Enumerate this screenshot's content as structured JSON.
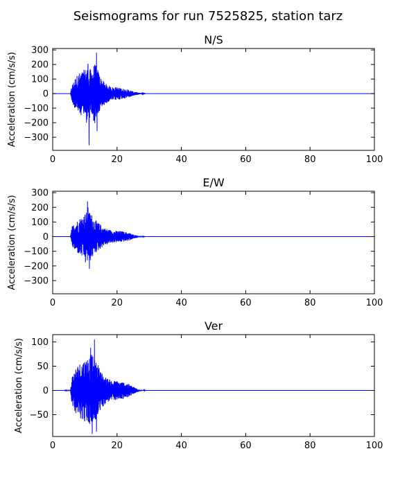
{
  "figure": {
    "title": "Seismograms for run 7525825, station tarz"
  },
  "chart_data": [
    {
      "type": "line",
      "title": "N/S",
      "xlabel": "",
      "ylabel": "Acceleration (cm/s/s)",
      "xlim": [
        0,
        100
      ],
      "ylim": [
        -390,
        310
      ],
      "xticks": [
        0,
        20,
        40,
        60,
        80,
        100
      ],
      "yticks": [
        -300,
        -200,
        -100,
        0,
        100,
        200,
        300
      ],
      "line_color": "#0000ff",
      "envelope": [
        [
          0,
          0
        ],
        [
          5.5,
          0
        ],
        [
          6,
          60
        ],
        [
          7,
          110
        ],
        [
          8,
          140
        ],
        [
          9,
          150
        ],
        [
          10,
          170
        ],
        [
          11,
          190
        ],
        [
          12,
          160
        ],
        [
          13,
          210
        ],
        [
          14,
          170
        ],
        [
          15,
          110
        ],
        [
          16,
          80
        ],
        [
          17,
          60
        ],
        [
          18,
          50
        ],
        [
          19,
          45
        ],
        [
          20,
          45
        ],
        [
          21,
          40
        ],
        [
          22,
          35
        ],
        [
          23,
          30
        ],
        [
          24,
          25
        ],
        [
          25,
          15
        ],
        [
          26,
          10
        ],
        [
          27,
          5
        ],
        [
          28,
          2
        ],
        [
          29,
          0
        ],
        [
          100,
          0
        ]
      ],
      "peaks": [
        {
          "x": 13.6,
          "y": 282
        },
        {
          "x": 11.3,
          "y": -355
        },
        {
          "x": 13.8,
          "y": -258
        },
        {
          "x": 10.5,
          "y": -200
        },
        {
          "x": 11.0,
          "y": 205
        }
      ]
    },
    {
      "type": "line",
      "title": "E/W",
      "xlabel": "",
      "ylabel": "Acceleration (cm/s/s)",
      "xlim": [
        0,
        100
      ],
      "ylim": [
        -390,
        310
      ],
      "xticks": [
        0,
        20,
        40,
        60,
        80,
        100
      ],
      "yticks": [
        -300,
        -200,
        -100,
        0,
        100,
        200,
        300
      ],
      "line_color": "#0000ff",
      "envelope": [
        [
          0,
          0
        ],
        [
          5.5,
          0
        ],
        [
          6,
          70
        ],
        [
          7,
          100
        ],
        [
          8,
          120
        ],
        [
          9,
          140
        ],
        [
          10,
          160
        ],
        [
          11,
          180
        ],
        [
          12,
          160
        ],
        [
          13,
          120
        ],
        [
          14,
          100
        ],
        [
          15,
          80
        ],
        [
          16,
          60
        ],
        [
          17,
          55
        ],
        [
          18,
          45
        ],
        [
          19,
          40
        ],
        [
          20,
          40
        ],
        [
          21,
          38
        ],
        [
          22,
          35
        ],
        [
          23,
          30
        ],
        [
          24,
          25
        ],
        [
          25,
          15
        ],
        [
          26,
          10
        ],
        [
          27,
          5
        ],
        [
          28,
          2
        ],
        [
          29,
          0
        ],
        [
          100,
          0
        ]
      ],
      "peaks": [
        {
          "x": 10.8,
          "y": 240
        },
        {
          "x": 11.4,
          "y": -220
        },
        {
          "x": 11.0,
          "y": 200
        },
        {
          "x": 10.2,
          "y": -175
        }
      ]
    },
    {
      "type": "line",
      "title": "Ver",
      "xlabel": "",
      "ylabel": "Acceleration (cm/s/s)",
      "xlim": [
        0,
        100
      ],
      "ylim": [
        -95,
        115
      ],
      "xticks": [
        0,
        20,
        40,
        60,
        80,
        100
      ],
      "yticks": [
        -50,
        0,
        50,
        100
      ],
      "line_color": "#0000ff",
      "envelope": [
        [
          0,
          0
        ],
        [
          3.5,
          0
        ],
        [
          4.5,
          1
        ],
        [
          5.5,
          1
        ],
        [
          6,
          30
        ],
        [
          7,
          45
        ],
        [
          8,
          55
        ],
        [
          9,
          60
        ],
        [
          10,
          65
        ],
        [
          11,
          70
        ],
        [
          12,
          75
        ],
        [
          13,
          65
        ],
        [
          14,
          55
        ],
        [
          15,
          40
        ],
        [
          16,
          30
        ],
        [
          17,
          25
        ],
        [
          18,
          22
        ],
        [
          19,
          20
        ],
        [
          20,
          20
        ],
        [
          21,
          18
        ],
        [
          22,
          18
        ],
        [
          23,
          15
        ],
        [
          24,
          12
        ],
        [
          25,
          8
        ],
        [
          26,
          5
        ],
        [
          27,
          2
        ],
        [
          28,
          1
        ],
        [
          29,
          0
        ],
        [
          100,
          0
        ]
      ],
      "peaks": [
        {
          "x": 13.0,
          "y": 105
        },
        {
          "x": 12.3,
          "y": -90
        },
        {
          "x": 11.8,
          "y": 88
        },
        {
          "x": 13.6,
          "y": -85
        }
      ]
    }
  ]
}
